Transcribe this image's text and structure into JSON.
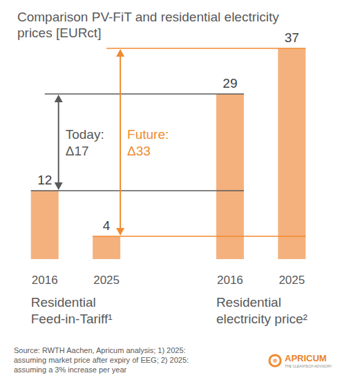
{
  "chart_data": {
    "type": "bar",
    "title": "Comparison PV-FiT and residential electricity\nprices [EURct]",
    "categories": [
      "2016",
      "2025",
      null,
      "2016",
      "2025"
    ],
    "values": [
      12,
      4,
      null,
      29,
      37
    ],
    "color": "#F5B17D",
    "ylim": [
      0,
      37
    ],
    "grid": false,
    "data_labels": true,
    "tick_labels": "x",
    "groups": [
      "Residential\nFeed-in-Tariff¹",
      "Residential\nelectricity price²"
    ],
    "annotations": [
      {
        "label": "Today:\nΔ17",
        "from": 12,
        "to": 29,
        "color": "#595959"
      },
      {
        "label": "Future:\nΔ33",
        "from": 4,
        "to": 37,
        "color": "#F08A30"
      }
    ],
    "footnote": "Source: RWTH Aachen, Apricum analysis; 1) 2025:\nassuming market price after expiry of EEG; 2) 2025:\nassuming a 3% increase per year",
    "logo": {
      "name": "APRICUM",
      "tagline": "THE CLEANTECH ADVISORY"
    }
  }
}
